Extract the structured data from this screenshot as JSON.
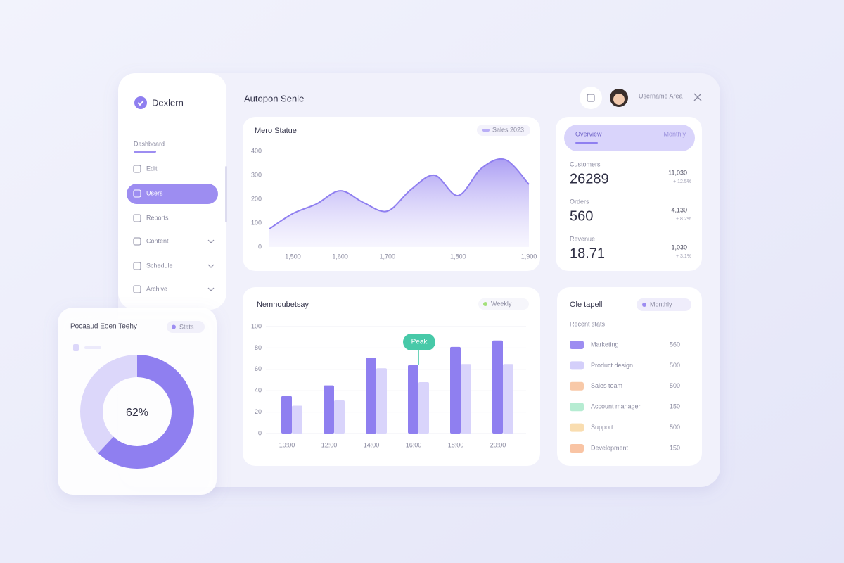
{
  "sidebar": {
    "brand": "Dexlern",
    "section": "Dashboard",
    "items": [
      "Edit",
      "Users",
      "Reports",
      "Content",
      "Schedule",
      "Archive"
    ],
    "active": 1
  },
  "header": {
    "title": "Autopon Senle",
    "user": "Username Area"
  },
  "stats": {
    "tab": "Overview",
    "tab_right": "Monthly",
    "items": [
      {
        "label": "Customers",
        "value": "26289",
        "change": "11,030",
        "note": "+ 12.5%"
      },
      {
        "label": "Orders",
        "value": "560",
        "change": "4,130",
        "note": "+ 8.2%"
      },
      {
        "label": "Revenue",
        "value": "18.71",
        "change": "1,030",
        "note": "+ 3.1%"
      }
    ]
  },
  "list": {
    "title": "Ole tapell",
    "filter": "Monthly",
    "subtitle": "Recent stats",
    "rows": [
      {
        "label": "Marketing",
        "value": "560",
        "color": "#9d8df1"
      },
      {
        "label": "Product design",
        "value": "500",
        "color": "#d4cffa"
      },
      {
        "label": "Sales team",
        "value": "500",
        "color": "#f8c9a8"
      },
      {
        "label": "Account manager",
        "value": "150",
        "color": "#b6ecd2"
      },
      {
        "label": "Support",
        "value": "500",
        "color": "#f9ddb0"
      },
      {
        "label": "Development",
        "value": "150",
        "color": "#f9c4a4"
      }
    ]
  },
  "chart_data": [
    {
      "type": "area",
      "title": "Mero Statue",
      "legend": "Sales 2023",
      "categories": [
        null,
        "1,500",
        null,
        "1,600",
        null,
        "1,700",
        null,
        null,
        "1,800",
        null,
        null,
        "1,900"
      ],
      "series": [
        {
          "name": "Sales",
          "color": "#8f7ff0",
          "values": [
            76,
            140,
            180,
            235,
            185,
            150,
            240,
            300,
            215,
            330,
            365,
            262
          ]
        }
      ],
      "ylim": [
        0,
        400
      ],
      "yticks": [
        0,
        100,
        200,
        300,
        400
      ],
      "grid": false
    },
    {
      "type": "bar",
      "title": "Nemhoubetsay",
      "legend": "Weekly",
      "annotation": "Peak",
      "categories": [
        "10:00",
        "12:00",
        "14:00",
        "16:00",
        "18:00",
        "20:00"
      ],
      "series": [
        {
          "color": "#8f7ff0",
          "values": [
            35,
            45,
            71,
            64,
            81,
            87
          ]
        },
        {
          "color": "#d9d4fb",
          "values": [
            26,
            31,
            61,
            48,
            65,
            65
          ]
        }
      ],
      "ylim": [
        0,
        100
      ],
      "yticks": [
        0,
        20,
        40,
        60,
        80,
        100
      ],
      "grid": true
    },
    {
      "type": "donut",
      "title": "Pocaaud Eoen Teehy",
      "badge": "Stats",
      "values": [
        62
      ],
      "value_labels": [
        "62%"
      ],
      "color": "#8f7ff0",
      "track": "#dcd7fa"
    }
  ]
}
